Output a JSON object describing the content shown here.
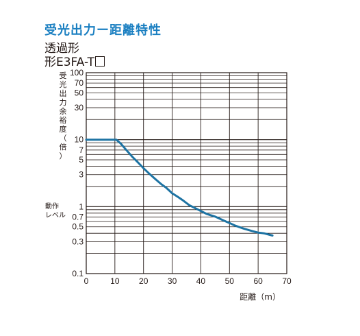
{
  "header": {
    "title": "受光出力ー距離特性",
    "subtitle_1": "透過形",
    "subtitle_2": "形E3FA-T"
  },
  "labels": {
    "operating_level": [
      "動作",
      "レベル"
    ]
  },
  "colors": {
    "title": "#1a7fc1",
    "curve": "#1d73a3",
    "grid": "#231815"
  },
  "chart_data": {
    "type": "line",
    "title": "受光出力ー距離特性",
    "xlabel": "距離（m）",
    "ylabel": "受光出力余裕度（倍）",
    "xscale": "linear",
    "yscale": "log",
    "xlim": [
      0,
      70
    ],
    "ylim": [
      0.1,
      100
    ],
    "xticks": [
      "0",
      "10",
      "20",
      "30",
      "40",
      "50",
      "60",
      "70"
    ],
    "yticks": [
      {
        "v": 100,
        "label": "100"
      },
      {
        "v": 70,
        "label": "70"
      },
      {
        "v": 50,
        "label": "50"
      },
      {
        "v": 30,
        "label": "30"
      },
      {
        "v": 10,
        "label": "10"
      },
      {
        "v": 7,
        "label": "7"
      },
      {
        "v": 5,
        "label": "5"
      },
      {
        "v": 3,
        "label": "3"
      },
      {
        "v": 1,
        "label": "1"
      },
      {
        "v": 0.7,
        "label": "0.7"
      },
      {
        "v": 0.5,
        "label": "0.5"
      },
      {
        "v": 0.3,
        "label": "0.3"
      },
      {
        "v": 0.1,
        "label": "0.1"
      }
    ],
    "grid": true,
    "series": [
      {
        "x": [
          0,
          10.5,
          12,
          14,
          16,
          18,
          20,
          22,
          24,
          26,
          28,
          30,
          32,
          34,
          36,
          38,
          40,
          42,
          45,
          48,
          50,
          52,
          55,
          58,
          60,
          62,
          65
        ],
        "y": [
          10,
          10,
          8.8,
          7.0,
          5.6,
          4.6,
          3.75,
          3.1,
          2.6,
          2.2,
          1.9,
          1.58,
          1.4,
          1.22,
          1.05,
          0.95,
          0.86,
          0.78,
          0.71,
          0.62,
          0.57,
          0.52,
          0.47,
          0.43,
          0.41,
          0.4,
          0.37
        ]
      }
    ]
  }
}
